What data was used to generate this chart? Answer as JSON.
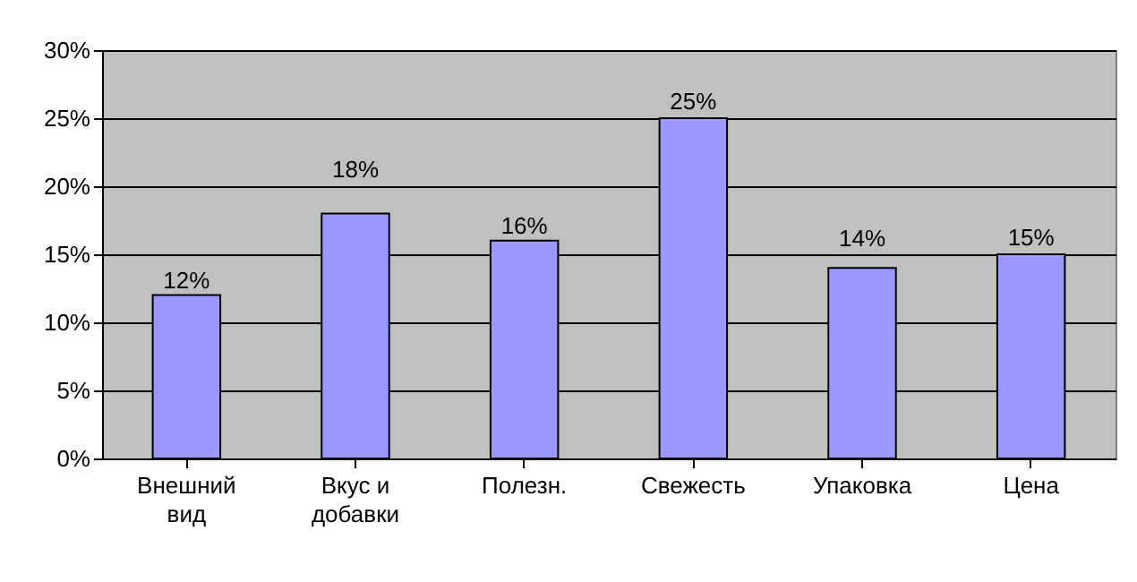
{
  "chart_data": {
    "type": "bar",
    "categories": [
      "Внешний вид",
      "Вкус и добавки",
      "Полезн.",
      "Свежесть",
      "Упаковка",
      "Цена"
    ],
    "values": [
      12,
      18,
      16,
      25,
      14,
      15
    ],
    "value_labels": [
      "12%",
      "18%",
      "16%",
      "25%",
      "14%",
      "15%"
    ],
    "color": "#9999ff",
    "ylim": [
      0,
      30
    ],
    "yticks": [
      {
        "value": 0,
        "label": "0%"
      },
      {
        "value": 5,
        "label": "5%"
      },
      {
        "value": 10,
        "label": "10%"
      },
      {
        "value": 15,
        "label": "15%"
      },
      {
        "value": 20,
        "label": "20%"
      },
      {
        "value": 25,
        "label": "25%"
      },
      {
        "value": 30,
        "label": "30%"
      }
    ],
    "grid": "y",
    "legend": false
  }
}
